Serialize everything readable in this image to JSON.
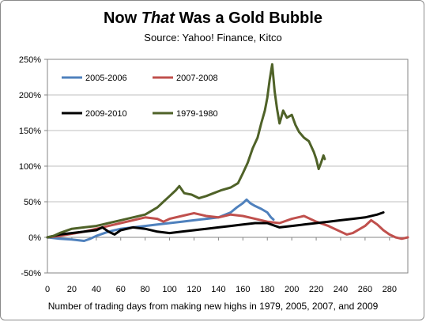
{
  "title": {
    "part1": "Now ",
    "part2": "That",
    "part3": " Was a Gold Bubble"
  },
  "subtitle": "Source: Yahoo! Finance, Kitco",
  "chart_data": {
    "type": "line",
    "xlabel": "Number of trading days from making new highs in 1979, 2005, 2007, and 2009",
    "ylabel": "",
    "xlim": [
      0,
      295
    ],
    "ylim": [
      -50,
      250
    ],
    "xticks": [
      0,
      20,
      40,
      60,
      80,
      100,
      120,
      140,
      160,
      180,
      200,
      220,
      240,
      260,
      280
    ],
    "yticks": [
      -50,
      0,
      50,
      100,
      150,
      200,
      250
    ],
    "ytick_labels": [
      "-50%",
      "0%",
      "50%",
      "100%",
      "150%",
      "200%",
      "250%"
    ],
    "legend_position": "top-left",
    "grid": "horizontal",
    "series": [
      {
        "name": "2005-2006",
        "color": "#4f81bd",
        "points": [
          [
            0,
            0
          ],
          [
            10,
            -2
          ],
          [
            20,
            -3
          ],
          [
            30,
            -5
          ],
          [
            35,
            -2
          ],
          [
            40,
            2
          ],
          [
            50,
            8
          ],
          [
            60,
            12
          ],
          [
            70,
            14
          ],
          [
            80,
            16
          ],
          [
            90,
            18
          ],
          [
            100,
            20
          ],
          [
            110,
            22
          ],
          [
            120,
            24
          ],
          [
            130,
            26
          ],
          [
            140,
            28
          ],
          [
            150,
            35
          ],
          [
            155,
            42
          ],
          [
            160,
            48
          ],
          [
            163,
            53
          ],
          [
            166,
            48
          ],
          [
            170,
            44
          ],
          [
            175,
            40
          ],
          [
            180,
            35
          ],
          [
            183,
            28
          ],
          [
            185,
            25
          ]
        ]
      },
      {
        "name": "2007-2008",
        "color": "#c0504d",
        "points": [
          [
            0,
            0
          ],
          [
            10,
            2
          ],
          [
            20,
            5
          ],
          [
            30,
            8
          ],
          [
            40,
            12
          ],
          [
            50,
            16
          ],
          [
            60,
            20
          ],
          [
            70,
            24
          ],
          [
            80,
            28
          ],
          [
            90,
            26
          ],
          [
            95,
            22
          ],
          [
            100,
            26
          ],
          [
            110,
            30
          ],
          [
            120,
            34
          ],
          [
            130,
            30
          ],
          [
            140,
            28
          ],
          [
            150,
            32
          ],
          [
            160,
            30
          ],
          [
            170,
            26
          ],
          [
            180,
            22
          ],
          [
            190,
            20
          ],
          [
            200,
            26
          ],
          [
            210,
            30
          ],
          [
            220,
            22
          ],
          [
            230,
            16
          ],
          [
            240,
            8
          ],
          [
            245,
            4
          ],
          [
            250,
            6
          ],
          [
            260,
            16
          ],
          [
            265,
            24
          ],
          [
            270,
            18
          ],
          [
            275,
            10
          ],
          [
            280,
            4
          ],
          [
            285,
            0
          ],
          [
            290,
            -2
          ],
          [
            295,
            0
          ]
        ]
      },
      {
        "name": "2009-2010",
        "color": "#000000",
        "points": [
          [
            0,
            0
          ],
          [
            10,
            4
          ],
          [
            20,
            6
          ],
          [
            30,
            8
          ],
          [
            40,
            10
          ],
          [
            45,
            14
          ],
          [
            50,
            8
          ],
          [
            55,
            4
          ],
          [
            60,
            10
          ],
          [
            70,
            14
          ],
          [
            80,
            12
          ],
          [
            90,
            8
          ],
          [
            100,
            6
          ],
          [
            110,
            8
          ],
          [
            120,
            10
          ],
          [
            130,
            12
          ],
          [
            140,
            14
          ],
          [
            150,
            16
          ],
          [
            160,
            18
          ],
          [
            170,
            20
          ],
          [
            180,
            20
          ],
          [
            190,
            14
          ],
          [
            200,
            16
          ],
          [
            210,
            18
          ],
          [
            220,
            20
          ],
          [
            230,
            22
          ],
          [
            240,
            24
          ],
          [
            250,
            26
          ],
          [
            260,
            28
          ],
          [
            270,
            32
          ],
          [
            275,
            35
          ]
        ]
      },
      {
        "name": "1979-1980",
        "color": "#4f6228",
        "points": [
          [
            0,
            0
          ],
          [
            5,
            2
          ],
          [
            10,
            6
          ],
          [
            20,
            12
          ],
          [
            30,
            14
          ],
          [
            40,
            16
          ],
          [
            50,
            20
          ],
          [
            60,
            24
          ],
          [
            70,
            28
          ],
          [
            80,
            32
          ],
          [
            90,
            42
          ],
          [
            95,
            50
          ],
          [
            100,
            58
          ],
          [
            105,
            66
          ],
          [
            108,
            72
          ],
          [
            112,
            62
          ],
          [
            118,
            60
          ],
          [
            124,
            55
          ],
          [
            130,
            58
          ],
          [
            136,
            62
          ],
          [
            142,
            66
          ],
          [
            150,
            70
          ],
          [
            156,
            76
          ],
          [
            160,
            90
          ],
          [
            164,
            105
          ],
          [
            168,
            125
          ],
          [
            172,
            140
          ],
          [
            175,
            160
          ],
          [
            178,
            178
          ],
          [
            180,
            196
          ],
          [
            182,
            222
          ],
          [
            184,
            243
          ],
          [
            186,
            205
          ],
          [
            188,
            180
          ],
          [
            190,
            160
          ],
          [
            193,
            178
          ],
          [
            196,
            168
          ],
          [
            200,
            172
          ],
          [
            203,
            158
          ],
          [
            206,
            148
          ],
          [
            210,
            140
          ],
          [
            214,
            135
          ],
          [
            218,
            120
          ],
          [
            220,
            110
          ],
          [
            222,
            96
          ],
          [
            224,
            105
          ],
          [
            226,
            115
          ],
          [
            227,
            110
          ]
        ]
      }
    ]
  }
}
